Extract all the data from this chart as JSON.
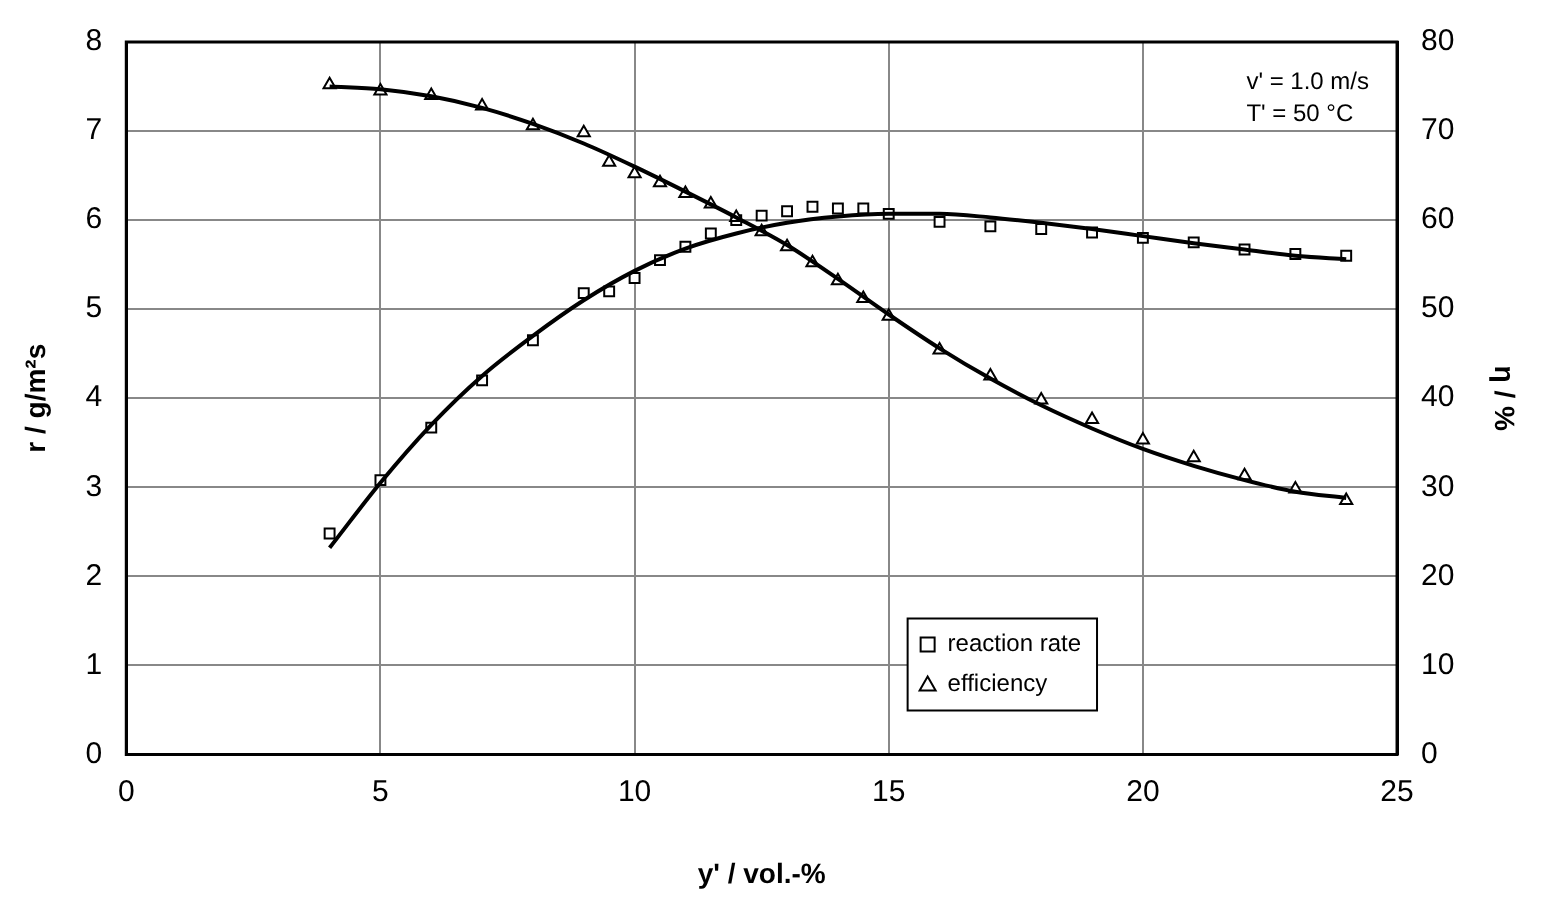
{
  "chart_data": {
    "type": "scatter",
    "xlabel": "y' / vol.-%",
    "ylabel": "r / g/m²s",
    "y2label": "η / %",
    "xlim": [
      0,
      25
    ],
    "xticks": [
      0,
      5,
      10,
      15,
      20,
      25
    ],
    "ylim": [
      0,
      8
    ],
    "yticks": [
      0,
      1,
      2,
      3,
      4,
      5,
      6,
      7,
      8
    ],
    "y2lim": [
      0,
      80
    ],
    "y2ticks": [
      0,
      10,
      20,
      30,
      40,
      50,
      60,
      70,
      80
    ],
    "grid": true,
    "legend": "bottom right",
    "annotations": [
      "v' = 1.0 m/s",
      "T' = 50 °C"
    ],
    "series": [
      {
        "name": "reaction rate",
        "marker": "square",
        "color": "#000000",
        "x": [
          4,
          5,
          6,
          7,
          8,
          9,
          9.5,
          10,
          10.5,
          11,
          11.5,
          12,
          12.5,
          13,
          13.5,
          14,
          14.5,
          15,
          16,
          17,
          18,
          19,
          20,
          21,
          22,
          23,
          24
        ],
        "values": [
          2.48,
          3.08,
          3.67,
          4.2,
          4.65,
          5.18,
          5.2,
          5.35,
          5.55,
          5.7,
          5.85,
          6.0,
          6.05,
          6.1,
          6.15,
          6.13,
          6.13,
          6.07,
          5.98,
          5.93,
          5.9,
          5.86,
          5.8,
          5.75,
          5.67,
          5.62,
          5.6
        ]
      },
      {
        "name": "efficiency",
        "marker": "triangle",
        "axis": "y2",
        "color": "#000000",
        "x": [
          4,
          5,
          6,
          7,
          8,
          9,
          9.5,
          10,
          10.5,
          11,
          11.5,
          12,
          12.5,
          13,
          13.5,
          14,
          14.5,
          15,
          16,
          17,
          18,
          19,
          20,
          21,
          22,
          23,
          24
        ],
        "values": [
          75.2,
          74.5,
          74,
          72.8,
          70.6,
          69.8,
          66.5,
          65.2,
          64.2,
          63,
          61.8,
          60.3,
          58.7,
          57,
          55.2,
          53.2,
          51.2,
          49.2,
          45.4,
          42.5,
          39.8,
          37.6,
          35.3,
          33.3,
          31.3,
          29.8,
          28.5
        ]
      },
      {
        "type": "line",
        "marker": "none",
        "color": "#000000",
        "x": [
          4,
          5,
          6,
          7,
          8,
          9,
          10,
          11,
          12,
          13,
          14,
          15,
          16,
          17,
          18,
          19,
          20,
          21,
          22,
          23,
          24
        ],
        "values": [
          2.32,
          3.05,
          3.7,
          4.25,
          4.7,
          5.1,
          5.43,
          5.68,
          5.85,
          5.97,
          6.04,
          6.07,
          6.07,
          6.03,
          5.97,
          5.9,
          5.82,
          5.74,
          5.67,
          5.6,
          5.56
        ]
      },
      {
        "type": "line",
        "marker": "none",
        "axis": "y2",
        "color": "#000000",
        "x": [
          4,
          5,
          6,
          7,
          8,
          9,
          10,
          11,
          12,
          13,
          14,
          15,
          16,
          17,
          18,
          19,
          20,
          21,
          22,
          23,
          24
        ],
        "values": [
          75,
          74.7,
          73.9,
          72.6,
          70.8,
          68.6,
          66,
          63.2,
          60.3,
          57.2,
          53.4,
          49.4,
          45.6,
          42.2,
          39.2,
          36.6,
          34.3,
          32.4,
          30.8,
          29.5,
          28.8
        ]
      }
    ]
  }
}
